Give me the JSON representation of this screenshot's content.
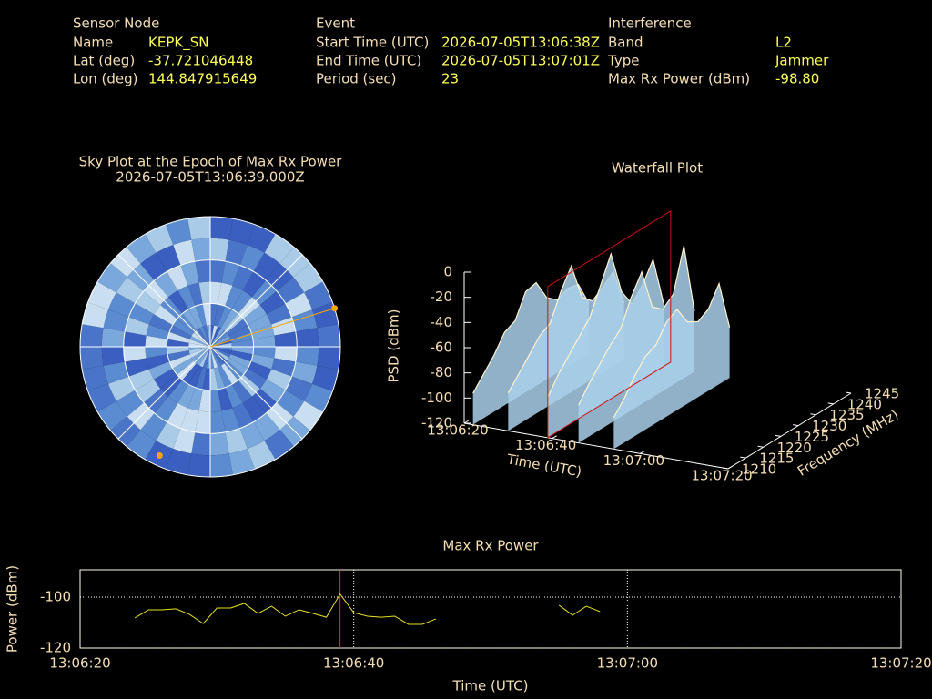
{
  "header": {
    "columns": [
      {
        "title": "Sensor Node",
        "rows": [
          [
            "Name",
            "KEPK_SN"
          ],
          [
            "Lat (deg)",
            "-37.721046448"
          ],
          [
            "Lon (deg)",
            "144.847915649"
          ]
        ]
      },
      {
        "title": "Event",
        "rows": [
          [
            "Start Time (UTC)",
            "2026-07-05T13:06:38Z"
          ],
          [
            "End Time (UTC)",
            "2026-07-05T13:07:01Z"
          ],
          [
            "Period (sec)",
            "23"
          ]
        ]
      },
      {
        "title": "Interference",
        "rows": [
          [
            "Band",
            "L2"
          ],
          [
            "Type",
            "Jammer"
          ],
          [
            "Max Rx Power (dBm)",
            "-98.80"
          ]
        ]
      }
    ]
  },
  "chart_data": [
    {
      "type": "polar",
      "title": "Sky Plot at the Epoch of Max Rx Power",
      "subtitle": "2026-07-05T13:06:39.000Z",
      "rlim": [
        90,
        0
      ],
      "rticks": [
        60,
        30,
        0
      ],
      "azticks": [
        0,
        45,
        90,
        135,
        180,
        225,
        270,
        315
      ],
      "color": "#ffa500",
      "azimuth": [
        72.8,
        205
      ],
      "elevation": [
        0,
        7
      ]
    },
    {
      "type": "waterfall",
      "title": "Waterfall Plot",
      "xlabel": "Time (UTC)",
      "ylabel": "Frequency (MHz)",
      "zlabel": "PSD (dBm)",
      "xlim": [
        "13:06:20",
        "13:07:20"
      ],
      "xticks": [
        "13:06:20",
        "13:06:40",
        "13:07:00",
        "13:07:20"
      ],
      "ylim": [
        1210,
        1245
      ],
      "yticks": [
        1210,
        1215,
        1220,
        1225,
        1230,
        1235,
        1240,
        1245
      ],
      "zlim": [
        -120,
        0
      ],
      "zticks": [
        0,
        -20,
        -40,
        -60,
        -80,
        -100,
        -120
      ],
      "marker_x": "13:06:39",
      "marker_color": "#d01010",
      "color": "#a9d0ea",
      "x": [
        "13:06:22",
        "13:06:30",
        "13:06:39",
        "13:06:46",
        "13:06:54"
      ],
      "y": [
        1210,
        1213,
        1216,
        1219,
        1222,
        1225,
        1228,
        1231,
        1234,
        1237,
        1240,
        1243
      ],
      "values": [
        [
          -95,
          -85,
          -75,
          -62,
          -58,
          -40,
          -38,
          -55,
          -62,
          -58,
          -60,
          -80
        ],
        [
          -90,
          -80,
          -70,
          -60,
          -55,
          -35,
          -20,
          -50,
          -58,
          -52,
          -45,
          -75
        ],
        [
          -88,
          -75,
          -65,
          -55,
          -45,
          -25,
          -5,
          -40,
          -55,
          -45,
          -30,
          -70
        ],
        [
          -90,
          -78,
          -68,
          -58,
          -50,
          -30,
          -15,
          -48,
          -55,
          -48,
          -15,
          -72
        ],
        [
          -95,
          -85,
          -72,
          -62,
          -58,
          -45,
          -40,
          -55,
          -60,
          -55,
          -40,
          -80
        ]
      ]
    },
    {
      "type": "line",
      "title": "Max Rx Power",
      "xlabel": "Time (UTC)",
      "ylabel": "Power (dBm)",
      "xlim": [
        "13:06:20",
        "13:07:20"
      ],
      "xticks": [
        "13:06:20",
        "13:06:40",
        "13:07:00",
        "13:07:20"
      ],
      "ylim": [
        -120,
        -89.3
      ],
      "yticks": [
        -120,
        -100
      ],
      "grid": true,
      "marker_x": "13:06:39",
      "marker_color": "#ff2020",
      "color": "#e8e020",
      "x": [
        "13:06:24",
        "13:06:25",
        "13:06:26",
        "13:06:27",
        "13:06:28",
        "13:06:29",
        "13:06:30",
        "13:06:31",
        "13:06:32",
        "13:06:33",
        "13:06:34",
        "13:06:35",
        "13:06:36",
        "13:06:37",
        "13:06:38",
        "13:06:39",
        "13:06:40",
        "13:06:41",
        "13:06:42",
        "13:06:43",
        "13:06:44",
        "13:06:45",
        "13:06:46",
        "13:06:50",
        "13:06:55",
        "13:06:56",
        "13:06:57",
        "13:06:58"
      ],
      "values": [
        -108.2,
        -105,
        -105,
        -104.6,
        -106.8,
        -110.4,
        -104.3,
        -104.3,
        -102.5,
        -106.4,
        -103.6,
        -107.5,
        -105,
        -106.4,
        -107.9,
        -98.8,
        -106.1,
        -107.5,
        -107.9,
        -107.5,
        -110.7,
        -110.7,
        -108.6,
        null,
        -103.2,
        -107.1,
        -103.6,
        -105.7
      ]
    }
  ]
}
